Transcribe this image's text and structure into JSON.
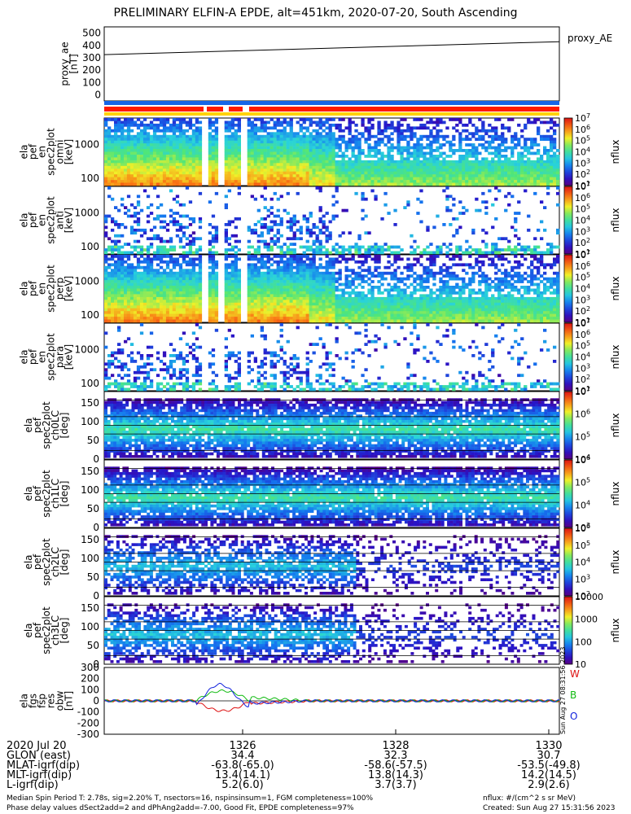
{
  "title": "PRELIMINARY ELFIN-A EPDE, alt=451km, 2020-07-20, South Ascending",
  "colors": {
    "red": "#ff1a00",
    "blue": "#1565e8",
    "yellow": "#ffd200",
    "white": "#ffffff"
  },
  "chart_data": [
    {
      "type": "line",
      "id": "proxy_ae",
      "ylabel": [
        "proxy_ae",
        "[nT]"
      ],
      "yticks": [
        "500",
        "400",
        "300",
        "200",
        "100",
        "0"
      ],
      "ylim": [
        -50,
        550
      ],
      "series": [
        {
          "name": "proxy_AE",
          "x": [
            0,
            1
          ],
          "y": [
            325,
            430
          ]
        }
      ]
    },
    {
      "type": "heatmap",
      "id": "en0",
      "ylabel": [
        "ela",
        "pef",
        "en",
        "spec2plot",
        "omni",
        "[keV]"
      ],
      "yticks": [
        "1000",
        "100"
      ],
      "zlabel": "nflux",
      "zticks": [
        "10^7",
        "10^6",
        "10^5",
        "10^4",
        "10^3",
        "10^2",
        "10^1"
      ]
    },
    {
      "type": "heatmap",
      "id": "en1",
      "ylabel": [
        "ela",
        "pef",
        "en",
        "spec2plot",
        "anti",
        "[keV]"
      ],
      "yticks": [
        "1000",
        "100"
      ],
      "zlabel": "nflux",
      "zticks": [
        "10^7",
        "10^6",
        "10^5",
        "10^4",
        "10^3",
        "10^2",
        "10^1"
      ]
    },
    {
      "type": "heatmap",
      "id": "en2",
      "ylabel": [
        "ela",
        "pef",
        "en",
        "spec2plot",
        "perp",
        "[keV]"
      ],
      "yticks": [
        "1000",
        "100"
      ],
      "zlabel": "nflux",
      "zticks": [
        "10^7",
        "10^6",
        "10^5",
        "10^4",
        "10^3",
        "10^2",
        "10^1"
      ]
    },
    {
      "type": "heatmap",
      "id": "en3",
      "ylabel": [
        "ela",
        "pef",
        "en",
        "spec2plot",
        "para",
        "[keV]"
      ],
      "yticks": [
        "1000",
        "100"
      ],
      "zlabel": "nflux",
      "zticks": [
        "10^7",
        "10^6",
        "10^5",
        "10^4",
        "10^3",
        "10^2",
        "10^1"
      ]
    },
    {
      "type": "heatmap",
      "id": "pa0",
      "ylabel": [
        "ela",
        "pef",
        "spec2plot",
        "ch0LC",
        "[deg]"
      ],
      "yticks": [
        "150",
        "100",
        "50",
        "0"
      ],
      "zlabel": "nflux",
      "zticks": [
        "10^7",
        "10^6",
        "10^5",
        "10^4"
      ]
    },
    {
      "type": "heatmap",
      "id": "pa1",
      "ylabel": [
        "ela",
        "pef",
        "spec2plot",
        "ch1LC",
        "[deg]"
      ],
      "yticks": [
        "150",
        "100",
        "50",
        "0"
      ],
      "zlabel": "nflux",
      "zticks": [
        "10^6",
        "10^5",
        "10^4",
        "10^3"
      ]
    },
    {
      "type": "heatmap",
      "id": "pa2",
      "ylabel": [
        "ela",
        "pef",
        "spec2plot",
        "ch2LC",
        "[deg]"
      ],
      "yticks": [
        "150",
        "100",
        "50",
        "0"
      ],
      "zlabel": "nflux",
      "zticks": [
        "10^6",
        "10^5",
        "10^4",
        "10^3",
        "10^2"
      ]
    },
    {
      "type": "heatmap",
      "id": "pa3",
      "ylabel": [
        "ela",
        "pef",
        "spec2plot",
        "ch3LC",
        "[deg]"
      ],
      "yticks": [
        "150",
        "100",
        "50",
        "0"
      ],
      "zlabel": "nflux",
      "zticks": [
        "10000",
        "1000",
        "100",
        "10"
      ]
    },
    {
      "type": "line",
      "id": "dbw",
      "ylabel": [
        "ela",
        "fgs",
        "fsp",
        "res",
        "obw",
        "[nT]"
      ],
      "yticks": [
        "300",
        "200",
        "100",
        "0",
        "-100",
        "-200",
        "-300"
      ],
      "ylim": [
        -300,
        300
      ],
      "series": [
        {
          "name": "W",
          "color": "#dd1111"
        },
        {
          "name": "B",
          "color": "#11bb11"
        },
        {
          "name": "O",
          "color": "#1122dd"
        }
      ]
    }
  ],
  "xaxis": {
    "ticks": [
      "1326",
      "1328",
      "1330"
    ],
    "rows": [
      {
        "label": "2020 Jul 20",
        "vals": [
          "",
          "",
          ""
        ]
      },
      {
        "label": "GLON (east)",
        "vals": [
          "34.4",
          "32.3",
          "30.7"
        ]
      },
      {
        "label": "MLAT-igrf(dip)",
        "vals": [
          "-63.8(-65.0)",
          "-58.6(-57.5)",
          "-53.5(-49.8)"
        ]
      },
      {
        "label": "MLT-igrf(dip)",
        "vals": [
          "13.4(14.1)",
          "13.8(14.3)",
          "14.2(14.5)"
        ]
      },
      {
        "label": "L-igrf(dip)",
        "vals": [
          "5.2(6.0)",
          "3.7(3.7)",
          "2.9(2.6)"
        ]
      }
    ]
  },
  "footer": {
    "line1": "Median Spin Period T: 2.78s, sig=2.20% T, nsectors=16, nspinsinsum=1, FGM completeness=100%",
    "line2": "Phase delay values dSect2add=2 and dPhAng2add=-7.00, Good Fit, EPDE completeness=97%",
    "units": "nflux: #/(cm^2 s sr MeV)",
    "created": "Created: Sun Aug 27 15:31:56 2023",
    "stamp": "Sun Aug 27 08:31:56 2023"
  }
}
